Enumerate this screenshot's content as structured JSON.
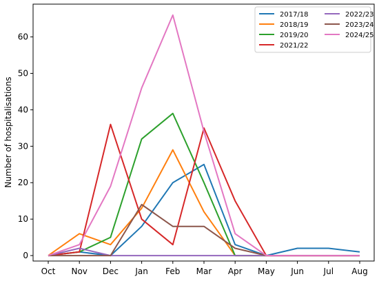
{
  "chart_data": {
    "type": "line",
    "title": "",
    "xlabel": "",
    "ylabel": "Number of hospitalisations",
    "categories": [
      "Oct",
      "Nov",
      "Dec",
      "Jan",
      "Feb",
      "Mar",
      "Apr",
      "May",
      "Jun",
      "Jul",
      "Aug"
    ],
    "ylim": [
      -1.5,
      69
    ],
    "yticks": [
      0,
      10,
      20,
      30,
      40,
      50,
      60
    ],
    "grid": false,
    "legend_position": "top-right",
    "legend_columns": 2,
    "series": [
      {
        "name": "2017/18",
        "color": "#1f77b4",
        "values": [
          0,
          1,
          0,
          8,
          20,
          25,
          3,
          0,
          2,
          2,
          1
        ]
      },
      {
        "name": "2018/19",
        "color": "#ff7f0e",
        "values": [
          0,
          6,
          3,
          13,
          29,
          12,
          0,
          0,
          0,
          0,
          0
        ]
      },
      {
        "name": "2019/20",
        "color": "#2ca02c",
        "values": [
          0,
          1,
          5,
          32,
          39,
          20,
          0,
          0,
          null,
          null,
          null
        ]
      },
      {
        "name": "2021/22",
        "color": "#d62728",
        "values": [
          0,
          1,
          36,
          10,
          3,
          35,
          15,
          0,
          0,
          0,
          0
        ]
      },
      {
        "name": "2022/23",
        "color": "#9467bd",
        "values": [
          0,
          2,
          0,
          0,
          0,
          0,
          0,
          0,
          0,
          0,
          0
        ]
      },
      {
        "name": "2023/24",
        "color": "#8c564b",
        "values": [
          0,
          0,
          0,
          14,
          8,
          8,
          2,
          0,
          0,
          0,
          0
        ]
      },
      {
        "name": "2024/25",
        "color": "#e377c2",
        "values": [
          0,
          3,
          19,
          46,
          66,
          34,
          6,
          0,
          0,
          0,
          0
        ]
      }
    ]
  }
}
